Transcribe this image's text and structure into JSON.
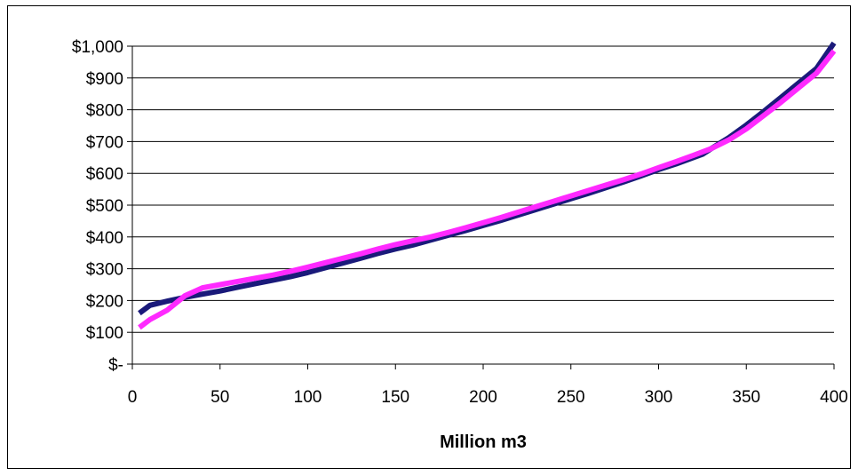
{
  "chart_data": {
    "type": "line",
    "title": "",
    "xlabel": "Million m3",
    "ylabel": "",
    "xlim": [
      0,
      400
    ],
    "ylim": [
      0,
      1000
    ],
    "grid": "horizontal",
    "legend": "none",
    "x_ticks": [
      0,
      50,
      100,
      150,
      200,
      250,
      300,
      350,
      400
    ],
    "x_tick_labels": [
      "0",
      "50",
      "100",
      "150",
      "200",
      "250",
      "300",
      "350",
      "400"
    ],
    "y_ticks": [
      0,
      100,
      200,
      300,
      400,
      500,
      600,
      700,
      800,
      900,
      1000
    ],
    "y_tick_labels": [
      "$-",
      "$100",
      "$200",
      "$300",
      "$400",
      "$500",
      "$600",
      "$700",
      "$800",
      "$900",
      "$1,000"
    ],
    "series": [
      {
        "color": "#1a1a7a",
        "points": [
          [
            4,
            160
          ],
          [
            10,
            185
          ],
          [
            20,
            198
          ],
          [
            30,
            210
          ],
          [
            40,
            220
          ],
          [
            50,
            230
          ],
          [
            60,
            242
          ],
          [
            70,
            253
          ],
          [
            80,
            264
          ],
          [
            90,
            275
          ],
          [
            100,
            288
          ],
          [
            110,
            303
          ],
          [
            120,
            318
          ],
          [
            130,
            333
          ],
          [
            140,
            348
          ],
          [
            150,
            362
          ],
          [
            160,
            375
          ],
          [
            170,
            390
          ],
          [
            180,
            405
          ],
          [
            190,
            420
          ],
          [
            200,
            436
          ],
          [
            210,
            452
          ],
          [
            220,
            469
          ],
          [
            230,
            486
          ],
          [
            240,
            503
          ],
          [
            250,
            520
          ],
          [
            260,
            537
          ],
          [
            270,
            555
          ],
          [
            280,
            573
          ],
          [
            290,
            592
          ],
          [
            300,
            612
          ],
          [
            310,
            630
          ],
          [
            320,
            650
          ],
          [
            325,
            660
          ],
          [
            330,
            678
          ],
          [
            340,
            712
          ],
          [
            350,
            752
          ],
          [
            360,
            795
          ],
          [
            370,
            840
          ],
          [
            380,
            885
          ],
          [
            390,
            930
          ],
          [
            400,
            1010
          ]
        ]
      },
      {
        "color": "#ff2aff",
        "points": [
          [
            4,
            115
          ],
          [
            10,
            140
          ],
          [
            20,
            170
          ],
          [
            30,
            215
          ],
          [
            40,
            240
          ],
          [
            50,
            250
          ],
          [
            60,
            260
          ],
          [
            70,
            270
          ],
          [
            80,
            280
          ],
          [
            90,
            292
          ],
          [
            100,
            305
          ],
          [
            110,
            319
          ],
          [
            120,
            333
          ],
          [
            130,
            347
          ],
          [
            140,
            362
          ],
          [
            150,
            376
          ],
          [
            160,
            388
          ],
          [
            170,
            400
          ],
          [
            180,
            414
          ],
          [
            190,
            429
          ],
          [
            200,
            445
          ],
          [
            210,
            461
          ],
          [
            220,
            478
          ],
          [
            230,
            495
          ],
          [
            240,
            512
          ],
          [
            250,
            529
          ],
          [
            260,
            546
          ],
          [
            270,
            563
          ],
          [
            280,
            580
          ],
          [
            290,
            598
          ],
          [
            300,
            618
          ],
          [
            310,
            637
          ],
          [
            320,
            657
          ],
          [
            330,
            678
          ],
          [
            340,
            705
          ],
          [
            350,
            740
          ],
          [
            360,
            782
          ],
          [
            370,
            825
          ],
          [
            380,
            870
          ],
          [
            390,
            915
          ],
          [
            400,
            985
          ]
        ]
      }
    ]
  }
}
